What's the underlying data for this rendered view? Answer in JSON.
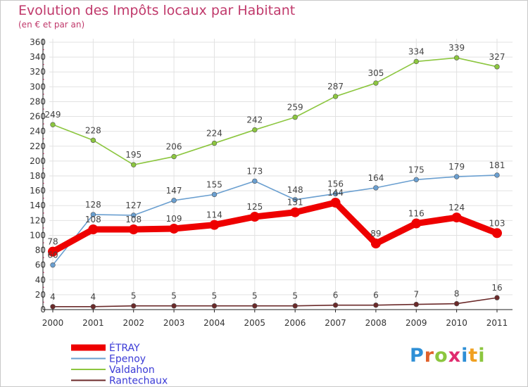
{
  "header": {
    "title": "Evolution des Impôts locaux par Habitant",
    "subtitle": "(en € et par an)"
  },
  "logo": {
    "text": "Proxiti",
    "letter_colors": [
      "#2e8fd6",
      "#e0612b",
      "#8cc63f",
      "#e02b6e",
      "#2e8fd6",
      "#f0a020",
      "#8cc63f"
    ]
  },
  "chart_data": {
    "type": "line",
    "x": [
      "2000",
      "2001",
      "2002",
      "2003",
      "2004",
      "2005",
      "2006",
      "2007",
      "2008",
      "2009",
      "2010",
      "2011"
    ],
    "ylim": [
      0,
      360
    ],
    "yticks": [
      "0",
      "20",
      "40",
      "60",
      "80",
      "100",
      "120",
      "140",
      "160",
      "180",
      "200",
      "220",
      "240",
      "260",
      "280",
      "300",
      "320",
      "340",
      "360"
    ],
    "grid": true,
    "legend_position": "bottom-left",
    "series": [
      {
        "name": "Valdahon",
        "color": "#8cc63f",
        "values": [
          249,
          228,
          195,
          206,
          224,
          242,
          259,
          287,
          305,
          334,
          339,
          327
        ],
        "labels": [
          "249",
          "228",
          "195",
          "206",
          "224",
          "242",
          "259",
          "287",
          "305",
          "334",
          "339",
          "327"
        ]
      },
      {
        "name": "Epenoy",
        "color": "#6a9fd0",
        "values": [
          60,
          128,
          127,
          147,
          155,
          173,
          148,
          156,
          164,
          175,
          179,
          181
        ],
        "labels": [
          "60",
          "128",
          "127",
          "147",
          "155",
          "173",
          "148",
          "156",
          "164",
          "175",
          "179",
          "181"
        ]
      },
      {
        "name": "Rantechaux",
        "color": "#6b2a2a",
        "values": [
          4,
          4,
          5,
          5,
          5,
          5,
          5,
          6,
          6,
          7,
          8,
          16
        ],
        "labels": [
          "4",
          "4",
          "5",
          "5",
          "5",
          "5",
          "5",
          "6",
          "6",
          "7",
          "8",
          "16"
        ]
      },
      {
        "name": "ÉTRAY",
        "color": "#ee0000",
        "bold": true,
        "values": [
          78,
          108,
          108,
          109,
          114,
          125,
          131,
          144,
          89,
          116,
          124,
          103
        ],
        "labels": [
          "78",
          "108",
          "108",
          "109",
          "114",
          "125",
          "131",
          "144",
          "89",
          "116",
          "124",
          "103"
        ]
      }
    ],
    "legend_order": [
      "ÉTRAY",
      "Epenoy",
      "Valdahon",
      "Rantechaux"
    ],
    "legend_colors": [
      "#ee0000",
      "#6a9fd0",
      "#8cc63f",
      "#6b2a2a"
    ],
    "legend_text_color": "#3a3ad6"
  }
}
